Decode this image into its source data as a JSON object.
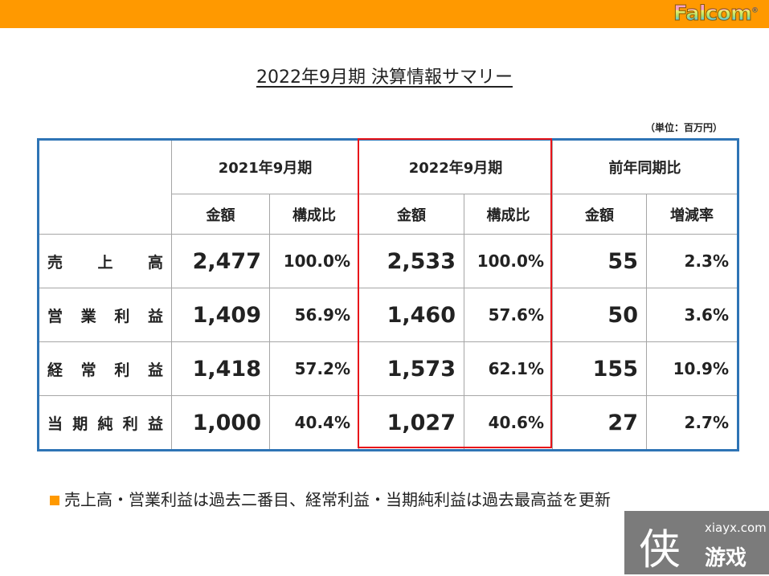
{
  "header": {
    "logo": "Falcom"
  },
  "title": "2022年9月期 決算情報サマリー",
  "unit": "（単位：百万円）",
  "table": {
    "groups": [
      "2021年9月期",
      "2022年9月期",
      "前年同期比"
    ],
    "subheaders": [
      "金額",
      "構成比",
      "金額",
      "構成比",
      "金額",
      "増減率"
    ],
    "rows": [
      {
        "label": "売上高",
        "cells": [
          "2,477",
          "100.0%",
          "2,533",
          "100.0%",
          "55",
          "2.3%"
        ]
      },
      {
        "label": "営業利益",
        "cells": [
          "1,409",
          "56.9%",
          "1,460",
          "57.6%",
          "50",
          "3.6%"
        ]
      },
      {
        "label": "経常利益",
        "cells": [
          "1,418",
          "57.2%",
          "1,573",
          "62.1%",
          "155",
          "10.9%"
        ]
      },
      {
        "label": "当期純利益",
        "cells": [
          "1,000",
          "40.4%",
          "1,027",
          "40.6%",
          "27",
          "2.7%"
        ]
      }
    ]
  },
  "note": "売上高・営業利益は過去二番目、経常利益・当期純利益は過去最高益を更新",
  "watermark": {
    "glyph": "侠",
    "url": "xiayx.com",
    "name": "游戏"
  }
}
